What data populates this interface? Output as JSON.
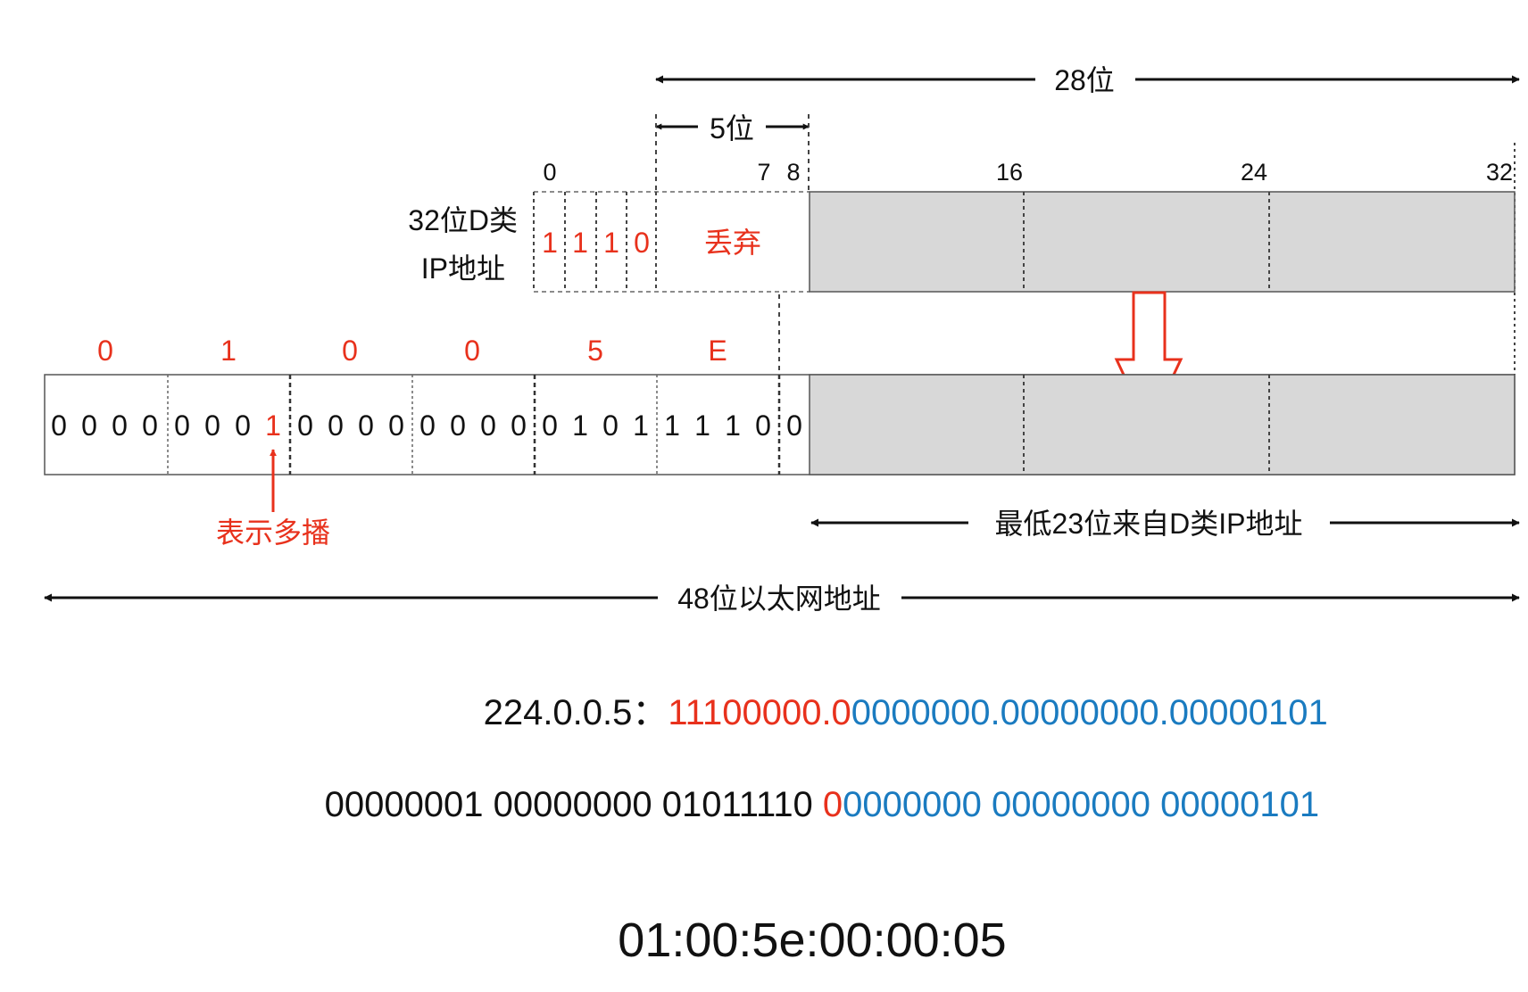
{
  "colors": {
    "red": "#e8311c",
    "blue": "#1a7bc0",
    "black": "#111111",
    "gray_fill": "#d8d8d8",
    "border": "#555555"
  },
  "labels": {
    "bits28": "28位",
    "bits5": "5位",
    "ip_label_line1": "32位D类",
    "ip_label_line2": "IP地址",
    "discard": "丢弃",
    "multicast": "表示多播",
    "low23": "最低23位来自D类IP地址",
    "eth48": "48位以太网地址"
  },
  "bit_ticks": [
    "0",
    "7",
    "8",
    "16",
    "24",
    "32"
  ],
  "ip_prefix_bits": [
    "1",
    "1",
    "1",
    "0"
  ],
  "hex_nibbles": [
    "0",
    "1",
    "0",
    "0",
    "5",
    "E"
  ],
  "mac_bits": [
    [
      "0",
      "0",
      "0",
      "0"
    ],
    [
      "0",
      "0",
      "0",
      "1"
    ],
    [
      "0",
      "0",
      "0",
      "0"
    ],
    [
      "0",
      "0",
      "0",
      "0"
    ],
    [
      "0",
      "1",
      "0",
      "1"
    ],
    [
      "1",
      "1",
      "1",
      "0"
    ],
    [
      "0"
    ]
  ],
  "ip_line": {
    "prefix": "224.0.0.5：",
    "red": "11100000.0",
    "blue": "0000000.00000000.00000101"
  },
  "mac_bin_line": {
    "black": "00000001 00000000 01011110 ",
    "red": "0",
    "blue": "0000000 00000000 00000101"
  },
  "mac_address": "01:00:5e:00:00:05"
}
